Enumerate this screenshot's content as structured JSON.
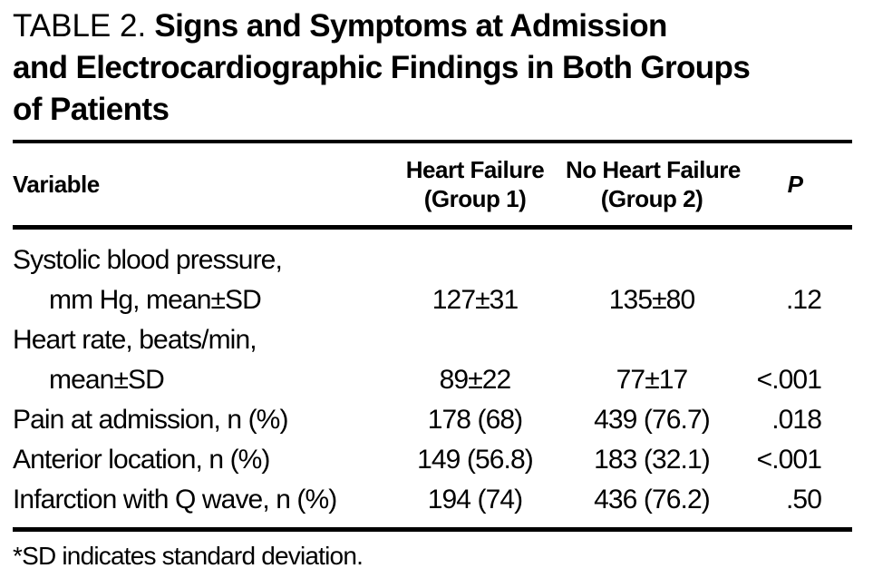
{
  "page": {
    "background_color": "#ffffff",
    "text_color": "#000000",
    "rule_color": "#000000"
  },
  "title": {
    "label": "TABLE 2.",
    "lines": [
      "Signs and Symptoms at Admission",
      "and Electrocardiographic Findings in Both Groups",
      "of Patients"
    ]
  },
  "table": {
    "columns": {
      "variable": "Variable",
      "group1": [
        "Heart Failure",
        "(Group 1)"
      ],
      "group2": [
        "No Heart Failure",
        "(Group 2)"
      ],
      "p": "P"
    },
    "rows": [
      {
        "variable": [
          "Systolic blood pressure,",
          "mm Hg, mean±SD"
        ],
        "group1": "127±31",
        "group2": "135±80",
        "p": ".12"
      },
      {
        "variable": [
          "Heart rate, beats/min,",
          "mean±SD"
        ],
        "group1": "89±22",
        "group2": "77±17",
        "p": "<.001"
      },
      {
        "variable": [
          "Pain at admission, n (%)"
        ],
        "group1": "178 (68)",
        "group2": "439 (76.7)",
        "p": ".018"
      },
      {
        "variable": [
          "Anterior location, n (%)"
        ],
        "group1": "149 (56.8)",
        "group2": "183 (32.1)",
        "p": "<.001"
      },
      {
        "variable": [
          "Infarction with Q wave, n (%)"
        ],
        "group1": "194 (74)",
        "group2": "436 (76.2)",
        "p": ".50"
      }
    ]
  },
  "footnote": "*SD indicates standard deviation."
}
